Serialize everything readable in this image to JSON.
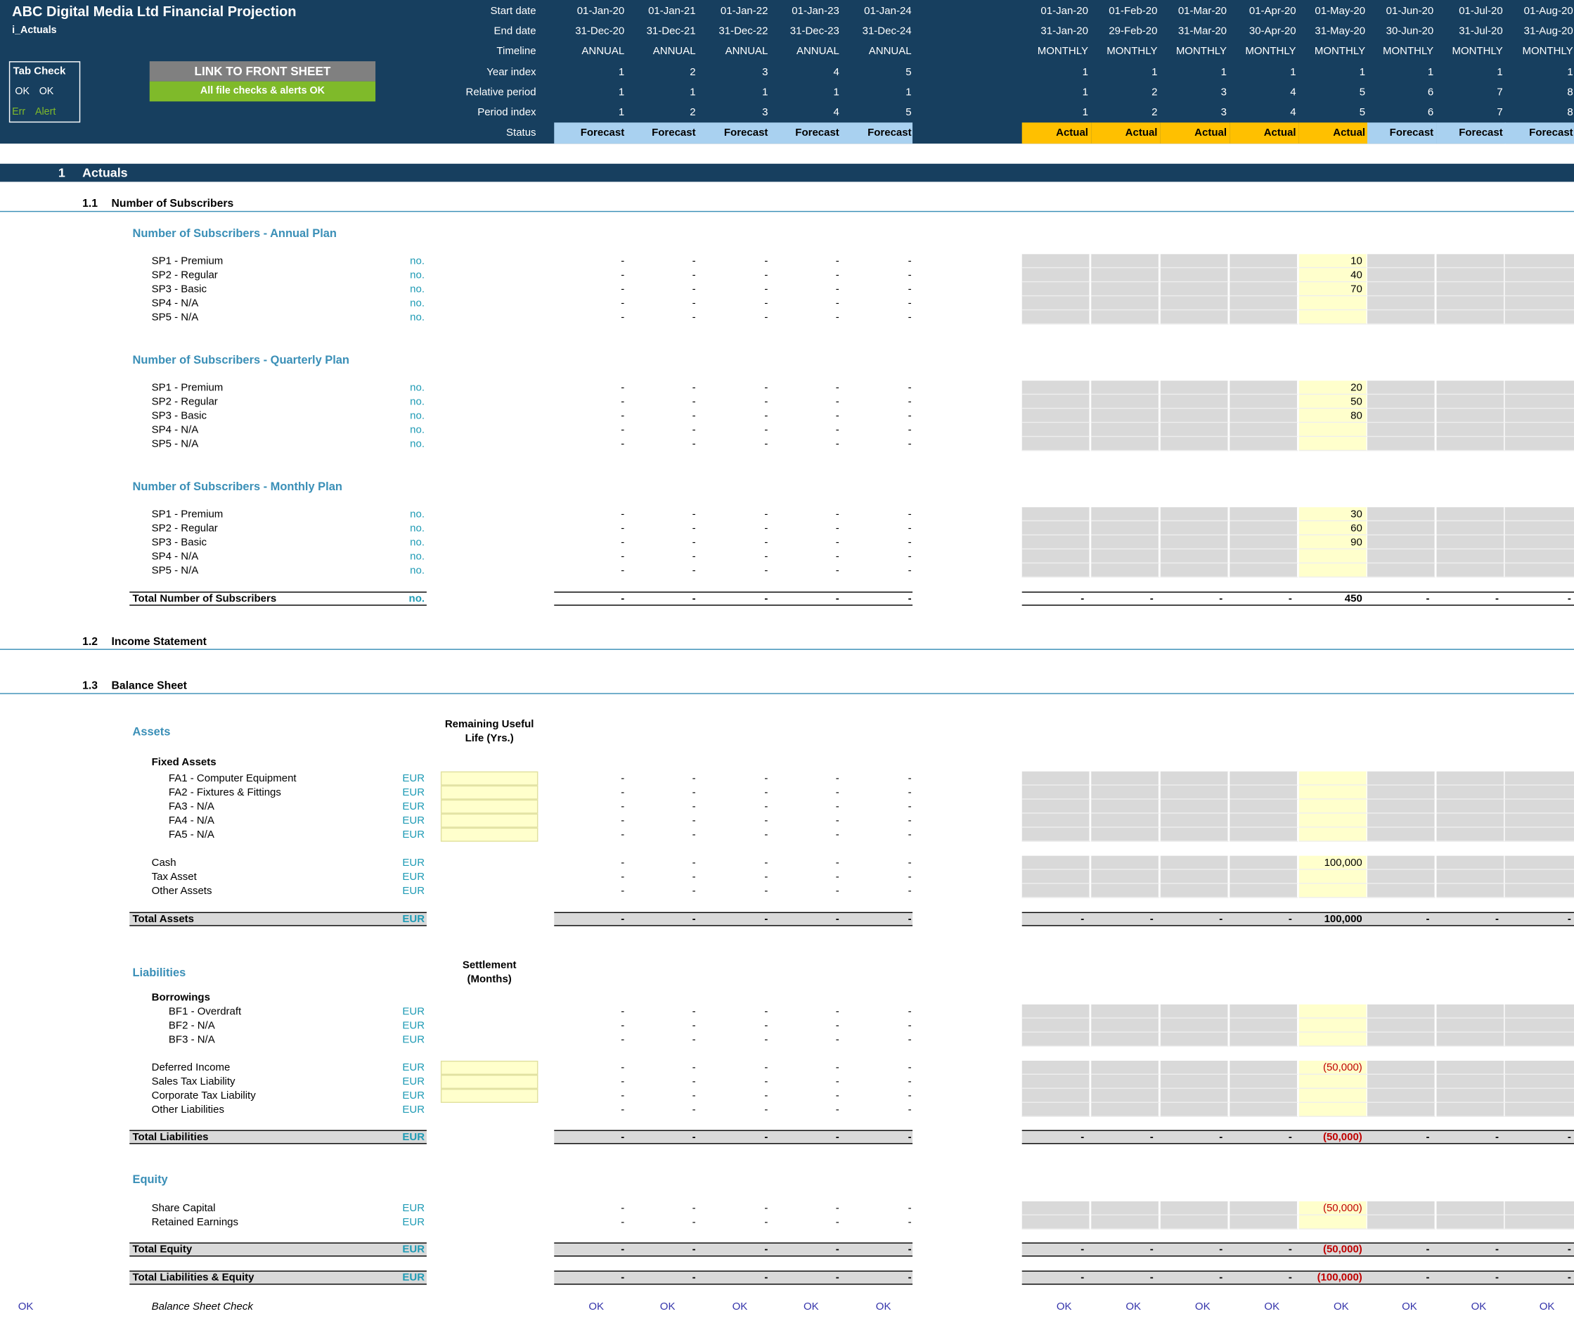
{
  "header": {
    "title": "ABC Digital Media Ltd Financial Projection",
    "sheet": "i_Actuals",
    "tab_check": "Tab Check",
    "ok1": "OK",
    "ok2": "OK",
    "err": "Err",
    "alert": "Alert",
    "link_button": "LINK TO FRONT SHEET",
    "status_msg": "All file checks & alerts OK",
    "row_labels": [
      "Start date",
      "End date",
      "Timeline",
      "Year index",
      "Relative period",
      "Period index",
      "Status"
    ]
  },
  "annual": [
    {
      "start": "01-Jan-20",
      "end": "31-Dec-20",
      "timeline": "ANNUAL",
      "year": "1",
      "rel": "1",
      "period": "1",
      "status": "Forecast"
    },
    {
      "start": "01-Jan-21",
      "end": "31-Dec-21",
      "timeline": "ANNUAL",
      "year": "2",
      "rel": "1",
      "period": "2",
      "status": "Forecast"
    },
    {
      "start": "01-Jan-22",
      "end": "31-Dec-22",
      "timeline": "ANNUAL",
      "year": "3",
      "rel": "1",
      "period": "3",
      "status": "Forecast"
    },
    {
      "start": "01-Jan-23",
      "end": "31-Dec-23",
      "timeline": "ANNUAL",
      "year": "4",
      "rel": "1",
      "period": "4",
      "status": "Forecast"
    },
    {
      "start": "01-Jan-24",
      "end": "31-Dec-24",
      "timeline": "ANNUAL",
      "year": "5",
      "rel": "1",
      "period": "5",
      "status": "Forecast"
    }
  ],
  "monthly": [
    {
      "start": "01-Jan-20",
      "end": "31-Jan-20",
      "timeline": "MONTHLY",
      "year": "1",
      "rel": "1",
      "period": "1",
      "status": "Actual"
    },
    {
      "start": "01-Feb-20",
      "end": "29-Feb-20",
      "timeline": "MONTHLY",
      "year": "1",
      "rel": "2",
      "period": "2",
      "status": "Actual"
    },
    {
      "start": "01-Mar-20",
      "end": "31-Mar-20",
      "timeline": "MONTHLY",
      "year": "1",
      "rel": "3",
      "period": "3",
      "status": "Actual"
    },
    {
      "start": "01-Apr-20",
      "end": "30-Apr-20",
      "timeline": "MONTHLY",
      "year": "1",
      "rel": "4",
      "period": "4",
      "status": "Actual"
    },
    {
      "start": "01-May-20",
      "end": "31-May-20",
      "timeline": "MONTHLY",
      "year": "1",
      "rel": "5",
      "period": "5",
      "status": "Actual"
    },
    {
      "start": "01-Jun-20",
      "end": "30-Jun-20",
      "timeline": "MONTHLY",
      "year": "1",
      "rel": "6",
      "period": "6",
      "status": "Forecast"
    },
    {
      "start": "01-Jul-20",
      "end": "31-Jul-20",
      "timeline": "MONTHLY",
      "year": "1",
      "rel": "7",
      "period": "7",
      "status": "Forecast"
    },
    {
      "start": "01-Aug-20",
      "end": "31-Aug-20",
      "timeline": "MONTHLY",
      "year": "1",
      "rel": "8",
      "period": "8",
      "status": "Forecast"
    }
  ],
  "colors": {
    "header_bg": "#173f5f",
    "forecast": "#a9d1f0",
    "actual": "#ffc000",
    "input": "#ffffcc",
    "grey": "#d9d9d9",
    "green": "#7fba2a"
  },
  "section1": {
    "num": "1",
    "title": "Actuals"
  },
  "sub1": {
    "num": "1.1",
    "title": "Number of Subscribers"
  },
  "sub2": {
    "num": "1.2",
    "title": "Income Statement"
  },
  "sub3": {
    "num": "1.3",
    "title": "Balance Sheet"
  },
  "dash": "-",
  "plans": [
    {
      "title": "Number of Subscribers - Annual Plan",
      "items": [
        {
          "label": "SP1 - Premium",
          "unit": "no.",
          "may": "10"
        },
        {
          "label": "SP2 - Regular",
          "unit": "no.",
          "may": "40"
        },
        {
          "label": "SP3 - Basic",
          "unit": "no.",
          "may": "70"
        },
        {
          "label": "SP4 - N/A",
          "unit": "no.",
          "may": ""
        },
        {
          "label": "SP5 - N/A",
          "unit": "no.",
          "may": ""
        }
      ]
    },
    {
      "title": "Number of Subscribers - Quarterly Plan",
      "items": [
        {
          "label": "SP1 - Premium",
          "unit": "no.",
          "may": "20"
        },
        {
          "label": "SP2 - Regular",
          "unit": "no.",
          "may": "50"
        },
        {
          "label": "SP3 - Basic",
          "unit": "no.",
          "may": "80"
        },
        {
          "label": "SP4 - N/A",
          "unit": "no.",
          "may": ""
        },
        {
          "label": "SP5 - N/A",
          "unit": "no.",
          "may": ""
        }
      ]
    },
    {
      "title": "Number of Subscribers - Monthly Plan",
      "items": [
        {
          "label": "SP1 - Premium",
          "unit": "no.",
          "may": "30"
        },
        {
          "label": "SP2 - Regular",
          "unit": "no.",
          "may": "60"
        },
        {
          "label": "SP3 - Basic",
          "unit": "no.",
          "may": "90"
        },
        {
          "label": "SP4 - N/A",
          "unit": "no.",
          "may": ""
        },
        {
          "label": "SP5 - N/A",
          "unit": "no.",
          "may": ""
        }
      ]
    }
  ],
  "total_subs": {
    "label": "Total Number of Subscribers",
    "unit": "no.",
    "may": "450"
  },
  "assets": {
    "title": "Assets",
    "rul_header": "Remaining Useful Life (Yrs.)",
    "fixed_title": "Fixed Assets",
    "fixed": [
      {
        "label": "FA1 - Computer Equipment",
        "unit": "EUR",
        "may": ""
      },
      {
        "label": "FA2 - Fixtures & Fittings",
        "unit": "EUR",
        "may": ""
      },
      {
        "label": "FA3 - N/A",
        "unit": "EUR",
        "may": ""
      },
      {
        "label": "FA4 - N/A",
        "unit": "EUR",
        "may": ""
      },
      {
        "label": "FA5 - N/A",
        "unit": "EUR",
        "may": ""
      }
    ],
    "other": [
      {
        "label": "Cash",
        "unit": "EUR",
        "may": "100,000"
      },
      {
        "label": "Tax Asset",
        "unit": "EUR",
        "may": ""
      },
      {
        "label": "Other Assets",
        "unit": "EUR",
        "may": ""
      }
    ],
    "total": {
      "label": "Total Assets",
      "unit": "EUR",
      "may": "100,000"
    }
  },
  "liabilities": {
    "title": "Liabilities",
    "settle_header": "Settlement (Months)",
    "borrow_title": "Borrowings",
    "borrow": [
      {
        "label": "BF1 - Overdraft",
        "unit": "EUR",
        "may": ""
      },
      {
        "label": "BF2 - N/A",
        "unit": "EUR",
        "may": ""
      },
      {
        "label": "BF3 - N/A",
        "unit": "EUR",
        "may": ""
      }
    ],
    "other": [
      {
        "label": "Deferred Income",
        "unit": "EUR",
        "may": "(50,000)"
      },
      {
        "label": "Sales Tax Liability",
        "unit": "EUR",
        "may": ""
      },
      {
        "label": "Corporate Tax Liability",
        "unit": "EUR",
        "may": ""
      },
      {
        "label": "Other Liabilities",
        "unit": "EUR",
        "may": ""
      }
    ],
    "total": {
      "label": "Total Liabilities",
      "unit": "EUR",
      "may": "(50,000)"
    }
  },
  "equity": {
    "title": "Equity",
    "items": [
      {
        "label": "Share Capital",
        "unit": "EUR",
        "may": "(50,000)"
      },
      {
        "label": "Retained Earnings",
        "unit": "EUR",
        "may": ""
      }
    ],
    "total": {
      "label": "Total Equity",
      "unit": "EUR",
      "may": "(50,000)"
    }
  },
  "total_le": {
    "label": "Total Liabilities & Equity",
    "unit": "EUR",
    "may": "(100,000)"
  },
  "bs_check": {
    "left": "OK",
    "label": "Balance Sheet Check",
    "value": "OK"
  }
}
